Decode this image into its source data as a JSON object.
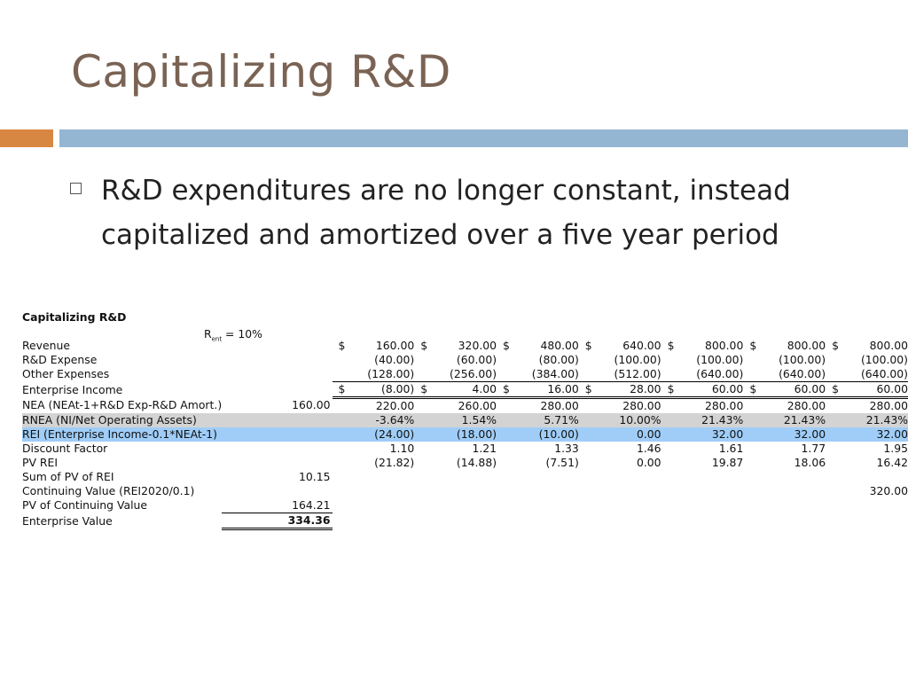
{
  "slide": {
    "title": "Capitalizing R&D",
    "bullet": "R&D expenditures are no longer constant, instead capitalized and amortized over a five year period"
  },
  "table": {
    "title": "Capitalizing R&D",
    "rent_label": "R",
    "rent_sub": "ent",
    "rent_value": " = 10%",
    "currency": "$",
    "rows": [
      {
        "label": "Revenue",
        "base": "",
        "dollar": true,
        "values": [
          "160.00",
          "320.00",
          "480.00",
          "640.00",
          "800.00",
          "800.00",
          "800.00"
        ]
      },
      {
        "label": "R&D Expense",
        "base": "",
        "dollar": false,
        "values": [
          "(40.00)",
          "(60.00)",
          "(80.00)",
          "(100.00)",
          "(100.00)",
          "(100.00)",
          "(100.00)"
        ]
      },
      {
        "label": "Other Expenses",
        "base": "",
        "dollar": false,
        "values": [
          "(128.00)",
          "(256.00)",
          "(384.00)",
          "(512.00)",
          "(640.00)",
          "(640.00)",
          "(640.00)"
        ]
      },
      {
        "label": "Enterprise Income",
        "base": "",
        "dollar": true,
        "values": [
          "(8.00)",
          "4.00",
          "16.00",
          "28.00",
          "60.00",
          "60.00",
          "60.00"
        ]
      },
      {
        "label": "NEA (NEAt-1+R&D Exp-R&D Amort.)",
        "base": "160.00",
        "dollar": false,
        "values": [
          "220.00",
          "260.00",
          "280.00",
          "280.00",
          "280.00",
          "280.00",
          "280.00"
        ]
      },
      {
        "label": "RNEA (NI/Net Operating Assets)",
        "base": "",
        "dollar": false,
        "values": [
          "-3.64%",
          "1.54%",
          "5.71%",
          "10.00%",
          "21.43%",
          "21.43%",
          "21.43%"
        ]
      },
      {
        "label": "REI (Enterprise Income-0.1*NEAt-1)",
        "base": "",
        "dollar": false,
        "values": [
          "(24.00)",
          "(18.00)",
          "(10.00)",
          "0.00",
          "32.00",
          "32.00",
          "32.00"
        ]
      },
      {
        "label": "Discount Factor",
        "base": "",
        "dollar": false,
        "values": [
          "1.10",
          "1.21",
          "1.33",
          "1.46",
          "1.61",
          "1.77",
          "1.95"
        ]
      },
      {
        "label": "PV REI",
        "base": "",
        "dollar": false,
        "values": [
          "(21.82)",
          "(14.88)",
          "(7.51)",
          "0.00",
          "19.87",
          "18.06",
          "16.42"
        ]
      },
      {
        "label": "Sum of PV of REI",
        "base": "10.15",
        "dollar": false,
        "values": [
          "",
          "",
          "",
          "",
          "",
          "",
          ""
        ]
      },
      {
        "label": "Continuing Value (REI2020/0.1)",
        "base": "",
        "dollar": false,
        "values": [
          "",
          "",
          "",
          "",
          "",
          "",
          "320.00"
        ]
      },
      {
        "label": "PV of Continuing Value",
        "base": "164.21",
        "dollar": false,
        "values": [
          "",
          "",
          "",
          "",
          "",
          "",
          ""
        ]
      },
      {
        "label": "Enterprise Value",
        "base": "334.36",
        "dollar": false,
        "values": [
          "",
          "",
          "",
          "",
          "",
          "",
          ""
        ]
      }
    ]
  }
}
